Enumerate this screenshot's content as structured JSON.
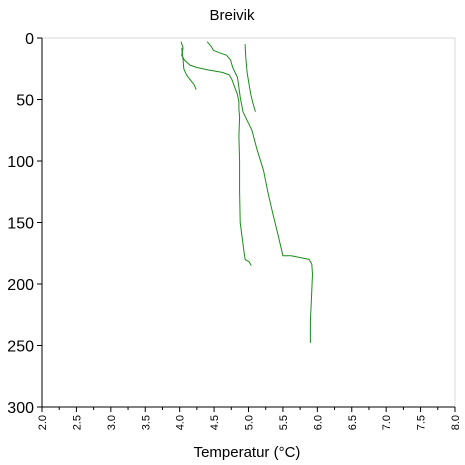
{
  "chart_data": {
    "type": "line",
    "title": "Breivik",
    "xlabel": "Temperatur (°C)",
    "ylabel": "",
    "xlim": [
      2.0,
      8.0
    ],
    "ylim": [
      300,
      0
    ],
    "y_inverted": true,
    "grid": false,
    "line_color": "#1a8c1a",
    "xticks": [
      "2.0",
      "2.5",
      "3.0",
      "3.5",
      "4.0",
      "4.5",
      "5.0",
      "5.5",
      "6.0",
      "6.5",
      "7.0",
      "7.5",
      "8.0"
    ],
    "yticks": [
      "0",
      "50",
      "100",
      "150",
      "200",
      "250",
      "300"
    ],
    "series": [
      {
        "points": [
          [
            4.02,
            3
          ],
          [
            4.05,
            8
          ],
          [
            4.03,
            14
          ],
          [
            4.07,
            18
          ],
          [
            4.15,
            22
          ],
          [
            4.25,
            24
          ],
          [
            4.42,
            26
          ],
          [
            4.62,
            28
          ],
          [
            4.72,
            30
          ],
          [
            4.76,
            34
          ],
          [
            4.8,
            40
          ],
          [
            4.84,
            46
          ],
          [
            4.86,
            52
          ],
          [
            4.86,
            58
          ],
          [
            4.87,
            64
          ],
          [
            4.86,
            80
          ],
          [
            4.87,
            100
          ],
          [
            4.87,
            125
          ],
          [
            4.88,
            150
          ],
          [
            4.91,
            163
          ],
          [
            4.93,
            172
          ],
          [
            4.95,
            180
          ],
          [
            5.01,
            182
          ],
          [
            5.04,
            185
          ]
        ]
      },
      {
        "points": [
          [
            4.4,
            3
          ],
          [
            4.46,
            7
          ],
          [
            4.49,
            10
          ],
          [
            4.58,
            12
          ],
          [
            4.68,
            14
          ],
          [
            4.74,
            18
          ],
          [
            4.77,
            24
          ],
          [
            4.84,
            32
          ],
          [
            4.88,
            48
          ],
          [
            4.92,
            60
          ],
          [
            5.05,
            75
          ],
          [
            5.12,
            90
          ],
          [
            5.22,
            108
          ],
          [
            5.28,
            125
          ],
          [
            5.35,
            142
          ],
          [
            5.42,
            158
          ],
          [
            5.47,
            170
          ],
          [
            5.5,
            177
          ],
          [
            5.62,
            177
          ],
          [
            5.88,
            180
          ],
          [
            5.92,
            184
          ],
          [
            5.93,
            192
          ],
          [
            5.92,
            205
          ],
          [
            5.91,
            218
          ],
          [
            5.9,
            230
          ],
          [
            5.9,
            240
          ],
          [
            5.9,
            248
          ]
        ]
      },
      {
        "points": [
          [
            4.95,
            5
          ],
          [
            4.96,
            15
          ],
          [
            4.98,
            28
          ],
          [
            5.0,
            35
          ],
          [
            5.03,
            45
          ],
          [
            5.06,
            52
          ],
          [
            5.1,
            60
          ]
        ]
      },
      {
        "points": [
          [
            4.03,
            8
          ],
          [
            4.05,
            18
          ],
          [
            4.06,
            25
          ],
          [
            4.1,
            30
          ],
          [
            4.14,
            33
          ],
          [
            4.21,
            38
          ],
          [
            4.24,
            42
          ]
        ]
      }
    ]
  }
}
